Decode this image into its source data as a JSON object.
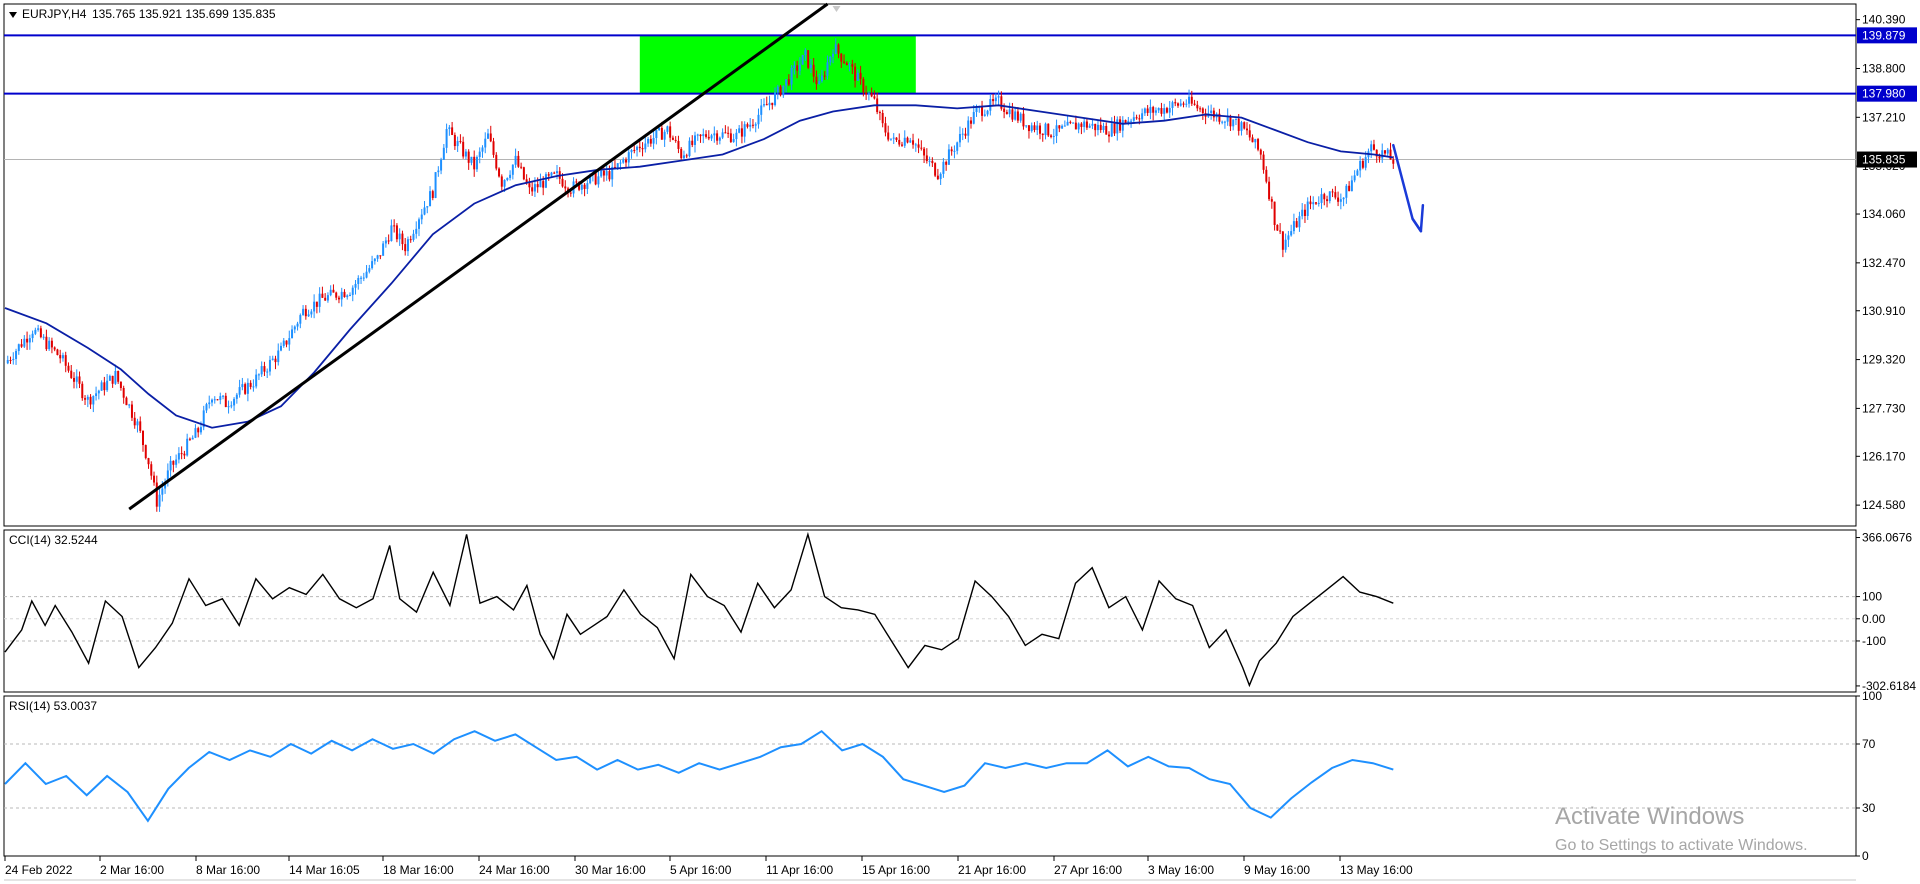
{
  "chart_data": [
    {
      "type": "candlestick",
      "title": "EURJPY,H4",
      "ohlc_header": "135.765 135.921 135.699 135.835",
      "ylim": [
        123.9,
        140.9
      ],
      "y_ticks": [
        "140.390",
        "138.800",
        "137.210",
        "135.620",
        "134.060",
        "132.470",
        "130.910",
        "129.320",
        "127.730",
        "126.170",
        "124.580"
      ],
      "y_tick_values": [
        140.39,
        138.8,
        137.21,
        135.62,
        134.06,
        132.47,
        130.91,
        129.32,
        127.73,
        126.17,
        124.58
      ],
      "x_ticks": [
        "24 Feb 2022",
        "2 Mar 16:00",
        "8 Mar 16:00",
        "14 Mar 16:05",
        "18 Mar 16:00",
        "24 Mar 16:00",
        "30 Mar 16:00",
        "5 Apr 16:00",
        "11 Apr 16:00",
        "15 Apr 16:00",
        "21 Apr 16:00",
        "27 Apr 16:00",
        "3 May 16:00",
        "9 May 16:00",
        "13 May 16:00"
      ],
      "close_path": [
        [
          0,
          129.2
        ],
        [
          10,
          130.3
        ],
        [
          20,
          129.4
        ],
        [
          30,
          128.0
        ],
        [
          40,
          128.8
        ],
        [
          48,
          127.2
        ],
        [
          52,
          126.0
        ],
        [
          55,
          124.7
        ],
        [
          60,
          125.8
        ],
        [
          70,
          127.0
        ],
        [
          75,
          128.2
        ],
        [
          80,
          127.9
        ],
        [
          90,
          128.6
        ],
        [
          100,
          129.6
        ],
        [
          108,
          130.9
        ],
        [
          115,
          131.3
        ],
        [
          125,
          131.6
        ],
        [
          135,
          132.6
        ],
        [
          140,
          133.6
        ],
        [
          145,
          133.0
        ],
        [
          150,
          134.0
        ],
        [
          155,
          134.8
        ],
        [
          160,
          136.8
        ],
        [
          165,
          136.2
        ],
        [
          170,
          135.6
        ],
        [
          175,
          136.6
        ],
        [
          180,
          135.1
        ],
        [
          185,
          135.8
        ],
        [
          190,
          134.8
        ],
        [
          195,
          135.1
        ],
        [
          200,
          135.3
        ],
        [
          205,
          134.9
        ],
        [
          210,
          135.1
        ],
        [
          220,
          135.4
        ],
        [
          225,
          135.9
        ],
        [
          230,
          136.3
        ],
        [
          240,
          136.8
        ],
        [
          245,
          136.0
        ],
        [
          250,
          136.4
        ],
        [
          255,
          136.7
        ],
        [
          265,
          136.6
        ],
        [
          270,
          137.0
        ],
        [
          280,
          138.0
        ],
        [
          290,
          139.2
        ],
        [
          295,
          138.2
        ],
        [
          300,
          139.5
        ],
        [
          305,
          139.0
        ],
        [
          310,
          138.3
        ],
        [
          315,
          137.7
        ],
        [
          318,
          136.9
        ],
        [
          322,
          136.4
        ],
        [
          328,
          136.6
        ],
        [
          333,
          135.9
        ],
        [
          338,
          135.4
        ],
        [
          345,
          136.4
        ],
        [
          352,
          137.4
        ],
        [
          360,
          137.7
        ],
        [
          370,
          137.0
        ],
        [
          380,
          136.7
        ],
        [
          390,
          137.0
        ],
        [
          400,
          136.8
        ],
        [
          410,
          137.3
        ],
        [
          420,
          137.5
        ],
        [
          428,
          137.7
        ],
        [
          435,
          137.4
        ],
        [
          445,
          137.1
        ],
        [
          450,
          136.7
        ],
        [
          455,
          136.0
        ],
        [
          457,
          135.2
        ],
        [
          460,
          133.9
        ],
        [
          463,
          133.1
        ],
        [
          466,
          133.5
        ],
        [
          472,
          134.3
        ],
        [
          478,
          134.7
        ],
        [
          485,
          134.6
        ],
        [
          490,
          135.5
        ],
        [
          495,
          136.2
        ],
        [
          500,
          136.0
        ],
        [
          503,
          135.8
        ]
      ],
      "ma_path": [
        [
          0,
          131.0
        ],
        [
          15,
          130.5
        ],
        [
          30,
          129.7
        ],
        [
          42,
          129.0
        ],
        [
          52,
          128.2
        ],
        [
          62,
          127.5
        ],
        [
          75,
          127.1
        ],
        [
          88,
          127.3
        ],
        [
          100,
          127.8
        ],
        [
          112,
          128.9
        ],
        [
          125,
          130.3
        ],
        [
          140,
          131.8
        ],
        [
          155,
          133.4
        ],
        [
          170,
          134.4
        ],
        [
          185,
          135.0
        ],
        [
          200,
          135.3
        ],
        [
          215,
          135.5
        ],
        [
          230,
          135.6
        ],
        [
          245,
          135.8
        ],
        [
          260,
          136.0
        ],
        [
          275,
          136.5
        ],
        [
          288,
          137.1
        ],
        [
          300,
          137.4
        ],
        [
          315,
          137.6
        ],
        [
          330,
          137.6
        ],
        [
          345,
          137.5
        ],
        [
          360,
          137.6
        ],
        [
          375,
          137.4
        ],
        [
          390,
          137.2
        ],
        [
          405,
          137.0
        ],
        [
          420,
          137.1
        ],
        [
          435,
          137.3
        ],
        [
          448,
          137.2
        ],
        [
          460,
          136.8
        ],
        [
          472,
          136.4
        ],
        [
          484,
          136.1
        ],
        [
          496,
          136.0
        ],
        [
          503,
          135.9
        ]
      ],
      "horizontal_lines": [
        {
          "value": 139.879,
          "label": "139.879"
        },
        {
          "value": 137.98,
          "label": "137.980"
        }
      ],
      "price_line": {
        "value": 135.835,
        "label": "135.835"
      },
      "zone": {
        "x_start": 230,
        "x_end": 330,
        "y_top": 139.879,
        "y_bottom": 137.98
      },
      "trendline": {
        "x1": 45,
        "y1": 124.45,
        "x2": 298,
        "y2": 141.0
      },
      "arrow_path": [
        [
          503,
          136.3
        ],
        [
          510,
          133.9
        ],
        [
          513,
          133.5
        ]
      ],
      "colors": {
        "bull": "#1e90ff",
        "bear": "#e00000",
        "ma": "#0a1fa6",
        "level": "#0000cc",
        "zone": "#00ff00",
        "trend": "#000000",
        "arrow": "#1a3ad8"
      }
    },
    {
      "type": "line",
      "title": "CCI(14) 32.5244",
      "ylim": [
        -330,
        400
      ],
      "y_ticks": [
        "366.0676",
        "100",
        "0.00",
        "-100",
        "-302.6184"
      ],
      "y_tick_values": [
        366.0676,
        100,
        0,
        -100,
        -302.6184
      ],
      "levels": [
        100,
        -100
      ],
      "path": [
        [
          0,
          -150
        ],
        [
          5,
          -50
        ],
        [
          8,
          80
        ],
        [
          12,
          -30
        ],
        [
          15,
          60
        ],
        [
          20,
          -60
        ],
        [
          25,
          -200
        ],
        [
          30,
          80
        ],
        [
          35,
          10
        ],
        [
          40,
          -220
        ],
        [
          45,
          -130
        ],
        [
          50,
          -20
        ],
        [
          55,
          180
        ],
        [
          60,
          60
        ],
        [
          65,
          90
        ],
        [
          70,
          -30
        ],
        [
          75,
          180
        ],
        [
          80,
          90
        ],
        [
          85,
          140
        ],
        [
          90,
          110
        ],
        [
          95,
          200
        ],
        [
          100,
          90
        ],
        [
          105,
          50
        ],
        [
          110,
          90
        ],
        [
          115,
          330
        ],
        [
          118,
          90
        ],
        [
          123,
          30
        ],
        [
          128,
          210
        ],
        [
          133,
          60
        ],
        [
          138,
          380
        ],
        [
          142,
          70
        ],
        [
          147,
          100
        ],
        [
          152,
          40
        ],
        [
          156,
          150
        ],
        [
          160,
          -70
        ],
        [
          164,
          -180
        ],
        [
          168,
          20
        ],
        [
          172,
          -70
        ],
        [
          176,
          -30
        ],
        [
          180,
          10
        ],
        [
          185,
          130
        ],
        [
          190,
          20
        ],
        [
          195,
          -40
        ],
        [
          200,
          -180
        ],
        [
          205,
          200
        ],
        [
          210,
          100
        ],
        [
          215,
          60
        ],
        [
          220,
          -60
        ],
        [
          225,
          160
        ],
        [
          230,
          50
        ],
        [
          235,
          130
        ],
        [
          240,
          380
        ],
        [
          245,
          100
        ],
        [
          250,
          50
        ],
        [
          255,
          40
        ],
        [
          260,
          20
        ],
        [
          265,
          -100
        ],
        [
          270,
          -220
        ],
        [
          275,
          -120
        ],
        [
          280,
          -140
        ],
        [
          285,
          -90
        ],
        [
          290,
          170
        ],
        [
          295,
          100
        ],
        [
          300,
          10
        ],
        [
          305,
          -120
        ],
        [
          310,
          -70
        ],
        [
          315,
          -90
        ],
        [
          320,
          160
        ],
        [
          325,
          230
        ],
        [
          330,
          50
        ],
        [
          335,
          100
        ],
        [
          340,
          -50
        ],
        [
          345,
          170
        ],
        [
          350,
          90
        ],
        [
          355,
          60
        ],
        [
          360,
          -130
        ],
        [
          365,
          -50
        ],
        [
          370,
          -220
        ],
        [
          372,
          -300
        ],
        [
          375,
          -190
        ],
        [
          380,
          -110
        ],
        [
          385,
          10
        ],
        [
          390,
          70
        ],
        [
          395,
          130
        ],
        [
          400,
          190
        ],
        [
          405,
          120
        ],
        [
          410,
          100
        ],
        [
          415,
          70
        ]
      ]
    },
    {
      "type": "line",
      "title": "RSI(14) 53.0037",
      "ylim": [
        0,
        100
      ],
      "y_ticks": [
        "100",
        "70",
        "30",
        "0"
      ],
      "y_tick_values": [
        100,
        70,
        30,
        0
      ],
      "levels": [
        70,
        30
      ],
      "path": [
        [
          0,
          45
        ],
        [
          6,
          58
        ],
        [
          12,
          45
        ],
        [
          18,
          50
        ],
        [
          24,
          38
        ],
        [
          30,
          50
        ],
        [
          36,
          40
        ],
        [
          42,
          22
        ],
        [
          48,
          42
        ],
        [
          54,
          55
        ],
        [
          60,
          65
        ],
        [
          66,
          60
        ],
        [
          72,
          66
        ],
        [
          78,
          62
        ],
        [
          84,
          70
        ],
        [
          90,
          64
        ],
        [
          96,
          72
        ],
        [
          102,
          66
        ],
        [
          108,
          73
        ],
        [
          114,
          67
        ],
        [
          120,
          70
        ],
        [
          126,
          64
        ],
        [
          132,
          73
        ],
        [
          138,
          78
        ],
        [
          144,
          72
        ],
        [
          150,
          76
        ],
        [
          156,
          68
        ],
        [
          162,
          60
        ],
        [
          168,
          62
        ],
        [
          174,
          54
        ],
        [
          180,
          60
        ],
        [
          186,
          54
        ],
        [
          192,
          57
        ],
        [
          198,
          52
        ],
        [
          204,
          58
        ],
        [
          210,
          54
        ],
        [
          216,
          58
        ],
        [
          222,
          62
        ],
        [
          228,
          68
        ],
        [
          234,
          70
        ],
        [
          240,
          78
        ],
        [
          246,
          66
        ],
        [
          252,
          70
        ],
        [
          258,
          62
        ],
        [
          264,
          48
        ],
        [
          270,
          44
        ],
        [
          276,
          40
        ],
        [
          282,
          44
        ],
        [
          288,
          58
        ],
        [
          294,
          55
        ],
        [
          300,
          58
        ],
        [
          306,
          55
        ],
        [
          312,
          58
        ],
        [
          318,
          58
        ],
        [
          324,
          66
        ],
        [
          330,
          56
        ],
        [
          336,
          62
        ],
        [
          342,
          56
        ],
        [
          348,
          55
        ],
        [
          354,
          48
        ],
        [
          360,
          45
        ],
        [
          366,
          30
        ],
        [
          372,
          24
        ],
        [
          378,
          36
        ],
        [
          384,
          46
        ],
        [
          390,
          55
        ],
        [
          396,
          60
        ],
        [
          402,
          58
        ],
        [
          408,
          54
        ]
      ]
    }
  ],
  "watermark": {
    "line1": "Activate Windows",
    "line2": "Go to Settings to activate Windows."
  }
}
